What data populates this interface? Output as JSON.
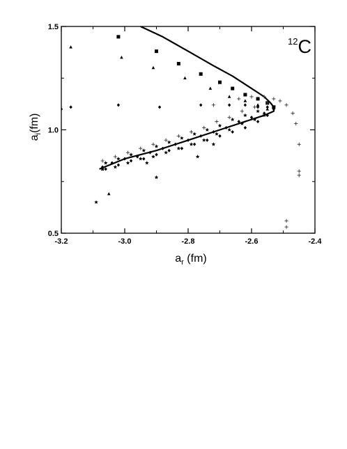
{
  "chart_data": {
    "type": "scatter",
    "title": "",
    "annotation": {
      "superscript": "12",
      "text": "C"
    },
    "xlabel": {
      "main": "a",
      "sub": "r",
      "unit": " (fm)"
    },
    "ylabel": {
      "main": "a",
      "sub": "i",
      "unit": "(fm)"
    },
    "xlim": [
      -3.2,
      -2.4
    ],
    "ylim": [
      0.5,
      1.5
    ],
    "xticks": [
      -3.2,
      -3.0,
      -2.8,
      -2.6,
      -2.4
    ],
    "xtick_labels": [
      "-3.2",
      "-3.0",
      "-2.8",
      "-2.6",
      "-2.4"
    ],
    "yticks": [
      0.5,
      1.0,
      1.5
    ],
    "ytick_labels": [
      "0.5",
      "1.0",
      "1.5"
    ],
    "minor_xticks": [
      -3.1,
      -2.9,
      -2.7,
      -2.5
    ],
    "minor_yticks": [
      0.75,
      1.25
    ],
    "grid": false,
    "line": {
      "x": [
        -2.95,
        -2.88,
        -2.8,
        -2.72,
        -2.66,
        -2.6,
        -2.56,
        -2.54,
        -2.53,
        -2.53,
        -2.56,
        -2.62,
        -2.7,
        -2.8,
        -2.9,
        -3.0,
        -3.08
      ],
      "y": [
        1.5,
        1.45,
        1.38,
        1.31,
        1.26,
        1.2,
        1.16,
        1.13,
        1.11,
        1.09,
        1.07,
        1.04,
        1.0,
        0.95,
        0.9,
        0.86,
        0.81
      ]
    },
    "series": [
      {
        "marker": "square",
        "x": [
          -3.02,
          -2.9,
          -2.83,
          -2.76,
          -2.7,
          -2.66,
          -2.62,
          -2.58,
          -2.55,
          -2.53
        ],
        "y": [
          1.45,
          1.38,
          1.32,
          1.27,
          1.23,
          1.2,
          1.17,
          1.15,
          1.13,
          1.11
        ]
      },
      {
        "marker": "triangle",
        "x": [
          -3.17,
          -3.01,
          -2.91,
          -2.81,
          -2.73,
          -2.67,
          -2.62,
          -2.58,
          -3.05,
          -3.07,
          -2.55
        ],
        "y": [
          1.4,
          1.35,
          1.3,
          1.25,
          1.2,
          1.16,
          1.14,
          1.12,
          0.69,
          0.81,
          1.1
        ]
      },
      {
        "marker": "diamond",
        "x": [
          -3.2,
          -3.17,
          -3.02,
          -2.89,
          -2.76,
          -2.67,
          -2.62,
          -2.58,
          -2.55,
          -2.53,
          -3.07,
          -3.04,
          -3.0,
          -2.96,
          -2.92,
          -2.88,
          -2.84,
          -2.8,
          -2.76,
          -2.72,
          -2.68,
          -2.64,
          -2.6,
          -2.56,
          -3.06,
          -3.02,
          -2.98,
          -2.94,
          -2.9,
          -2.86,
          -2.82,
          -2.78,
          -2.74,
          -2.7,
          -2.66,
          -2.62,
          -2.58,
          -2.55
        ],
        "y": [
          1.1,
          1.11,
          1.12,
          1.11,
          1.12,
          1.12,
          1.12,
          1.11,
          1.11,
          1.1,
          0.82,
          0.84,
          0.86,
          0.87,
          0.89,
          0.91,
          0.93,
          0.95,
          0.97,
          0.99,
          1.01,
          1.04,
          1.06,
          1.08,
          0.81,
          0.83,
          0.85,
          0.86,
          0.88,
          0.9,
          0.91,
          0.93,
          0.95,
          0.97,
          0.99,
          1.01,
          1.04,
          1.07
        ]
      },
      {
        "marker": "star",
        "x": [
          -3.09,
          -3.07,
          -3.03,
          -2.99,
          -2.95,
          -2.91,
          -2.87,
          -2.83,
          -2.79,
          -2.75,
          -2.71,
          -2.67,
          -2.63,
          -2.59,
          -2.56,
          -2.93,
          -2.9,
          -2.77,
          -2.72,
          -3.06,
          -3.02,
          -2.98,
          -2.94,
          -2.9,
          -2.86,
          -2.82,
          -2.78,
          -2.74,
          -2.7,
          -2.66,
          -2.62,
          -2.58
        ],
        "y": [
          0.65,
          0.81,
          0.82,
          0.84,
          0.86,
          0.87,
          0.89,
          0.91,
          0.93,
          0.95,
          0.98,
          1.0,
          1.03,
          1.05,
          1.07,
          0.84,
          0.77,
          0.87,
          0.93,
          0.84,
          0.86,
          0.88,
          0.9,
          0.92,
          0.94,
          0.96,
          0.98,
          1.0,
          1.02,
          1.05,
          1.07,
          1.09
        ]
      },
      {
        "marker": "plus",
        "x": [
          -3.07,
          -3.03,
          -2.99,
          -2.95,
          -2.91,
          -2.87,
          -2.83,
          -2.79,
          -2.75,
          -2.71,
          -2.67,
          -2.63,
          -2.59,
          -2.55,
          -2.72,
          -2.64,
          -2.6,
          -2.56,
          -2.53,
          -2.51,
          -2.49,
          -2.47,
          -2.46,
          -2.45,
          -2.45,
          -2.45,
          -2.49,
          -2.49
        ],
        "y": [
          0.85,
          0.87,
          0.89,
          0.91,
          0.93,
          0.95,
          0.97,
          0.99,
          1.01,
          1.04,
          1.06,
          1.09,
          1.11,
          1.13,
          1.12,
          1.15,
          1.16,
          1.16,
          1.15,
          1.14,
          1.12,
          1.08,
          1.03,
          0.93,
          0.8,
          0.78,
          0.56,
          0.53
        ]
      }
    ]
  }
}
